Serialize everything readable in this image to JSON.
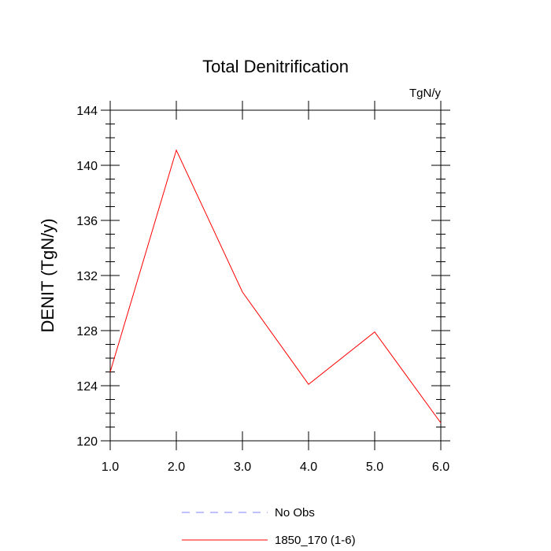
{
  "chart_data": {
    "type": "line",
    "title": "Total Denitrification",
    "units": "TgN/y",
    "ylabel": "DENIT  (TgN/y)",
    "xlabel": "",
    "xlim": [
      1.0,
      6.0
    ],
    "ylim": [
      120,
      144
    ],
    "x_ticks": [
      1.0,
      2.0,
      3.0,
      4.0,
      5.0,
      6.0
    ],
    "x_tick_labels": [
      "1.0",
      "2.0",
      "3.0",
      "4.0",
      "5.0",
      "6.0"
    ],
    "y_ticks": [
      120,
      124,
      128,
      132,
      136,
      140,
      144
    ],
    "y_tick_labels": [
      "120",
      "124",
      "128",
      "132",
      "136",
      "140",
      "144"
    ],
    "grid": false,
    "legend_position": "bottom",
    "series": [
      {
        "name": "1850_170 (1-6)",
        "color": "#ff0000",
        "style": "solid",
        "x": [
          1.0,
          2.0,
          3.0,
          4.0,
          5.0,
          6.0
        ],
        "values": [
          125.0,
          141.1,
          130.8,
          124.1,
          127.9,
          121.3
        ]
      }
    ],
    "legend": [
      {
        "label": "No Obs",
        "color": "#8080ff",
        "style": "dashed"
      },
      {
        "label": "1850_170 (1-6)",
        "color": "#ff0000",
        "style": "solid"
      }
    ]
  }
}
